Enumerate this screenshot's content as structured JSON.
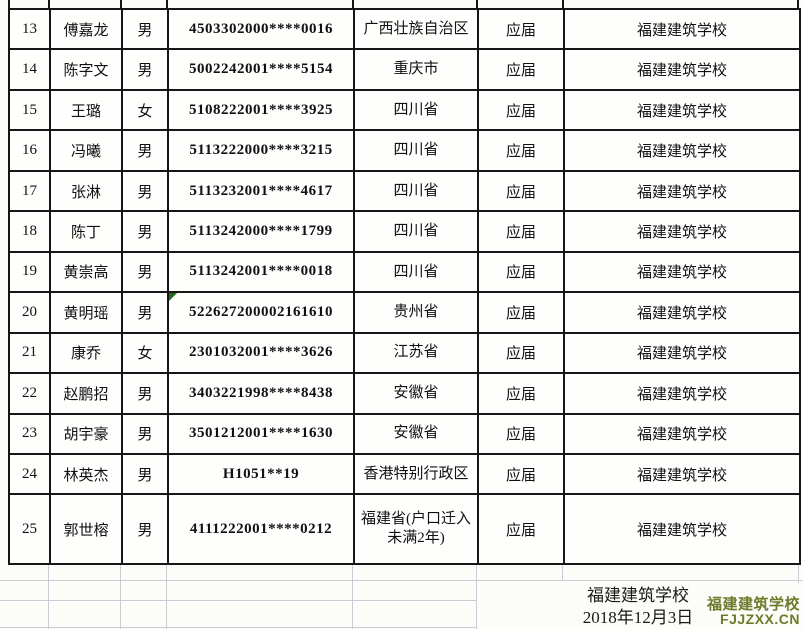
{
  "colors": {
    "table_border": "#161616",
    "grid_line": "#c9ccd4",
    "flag_triangle_green": "#1f6b1f",
    "watermark_green": "#6e7b2d"
  },
  "table": {
    "rows": [
      {
        "seq": "13",
        "name": "傅嘉龙",
        "gender": "男",
        "id": "4503302000****0016",
        "origin": "广西壮族自治区",
        "status": "应届",
        "school": "福建建筑学校",
        "flag": false
      },
      {
        "seq": "14",
        "name": "陈字文",
        "gender": "男",
        "id": "5002242001****5154",
        "origin": "重庆市",
        "status": "应届",
        "school": "福建建筑学校",
        "flag": false
      },
      {
        "seq": "15",
        "name": "王璐",
        "gender": "女",
        "id": "5108222001****3925",
        "origin": "四川省",
        "status": "应届",
        "school": "福建建筑学校",
        "flag": false
      },
      {
        "seq": "16",
        "name": "冯曦",
        "gender": "男",
        "id": "5113222000****3215",
        "origin": "四川省",
        "status": "应届",
        "school": "福建建筑学校",
        "flag": false
      },
      {
        "seq": "17",
        "name": "张淋",
        "gender": "男",
        "id": "5113232001****4617",
        "origin": "四川省",
        "status": "应届",
        "school": "福建建筑学校",
        "flag": false
      },
      {
        "seq": "18",
        "name": "陈丁",
        "gender": "男",
        "id": "5113242000****1799",
        "origin": "四川省",
        "status": "应届",
        "school": "福建建筑学校",
        "flag": false
      },
      {
        "seq": "19",
        "name": "黄崇高",
        "gender": "男",
        "id": "5113242001****0018",
        "origin": "四川省",
        "status": "应届",
        "school": "福建建筑学校",
        "flag": false
      },
      {
        "seq": "20",
        "name": "黄明瑶",
        "gender": "男",
        "id": "522627200002161610",
        "origin": "贵州省",
        "status": "应届",
        "school": "福建建筑学校",
        "flag": true
      },
      {
        "seq": "21",
        "name": "康乔",
        "gender": "女",
        "id": "2301032001****3626",
        "origin": "江苏省",
        "status": "应届",
        "school": "福建建筑学校",
        "flag": false
      },
      {
        "seq": "22",
        "name": "赵鹏招",
        "gender": "男",
        "id": "3403221998****8438",
        "origin": "安徽省",
        "status": "应届",
        "school": "福建建筑学校",
        "flag": false
      },
      {
        "seq": "23",
        "name": "胡宇豪",
        "gender": "男",
        "id": "3501212001****1630",
        "origin": "安徽省",
        "status": "应届",
        "school": "福建建筑学校",
        "flag": false
      },
      {
        "seq": "24",
        "name": "林英杰",
        "gender": "男",
        "id": "H1051**19",
        "origin": "香港特别行政区",
        "status": "应届",
        "school": "福建建筑学校",
        "flag": false
      },
      {
        "seq": "25",
        "name": "郭世榕",
        "gender": "男",
        "id": "4111222001****0212",
        "origin": "福建省(户口迁入未满2年)",
        "status": "应届",
        "school": "福建建筑学校",
        "flag": false
      }
    ]
  },
  "footer": {
    "school": "福建建筑学校",
    "date": "2018年12月3日"
  },
  "watermark": {
    "line1": "福建建筑学校",
    "line2": "FJJZXX.CN"
  }
}
